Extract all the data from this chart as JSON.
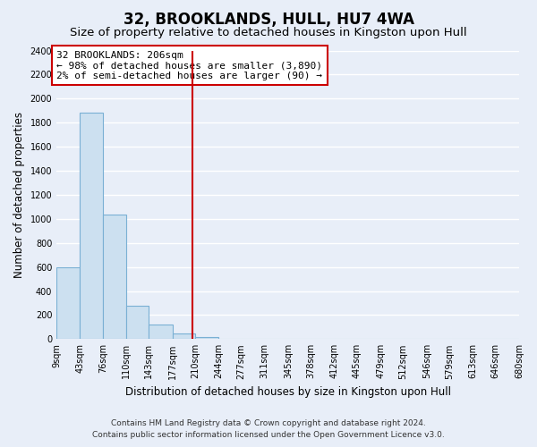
{
  "title": "32, BROOKLANDS, HULL, HU7 4WA",
  "subtitle": "Size of property relative to detached houses in Kingston upon Hull",
  "xlabel": "Distribution of detached houses by size in Kingston upon Hull",
  "ylabel": "Number of detached properties",
  "bin_edges": [
    9,
    43,
    76,
    110,
    143,
    177,
    210,
    244,
    277,
    311,
    345,
    378,
    412,
    445,
    479,
    512,
    546,
    579,
    613,
    646,
    680
  ],
  "bar_heights": [
    600,
    1880,
    1035,
    280,
    120,
    45,
    20,
    0,
    0,
    0,
    0,
    0,
    0,
    0,
    0,
    0,
    0,
    0,
    0,
    0
  ],
  "bar_color": "#cce0f0",
  "bar_edgecolor": "#7ab0d4",
  "property_line_x": 206,
  "property_line_color": "#cc0000",
  "annotation_line1": "32 BROOKLANDS: 206sqm",
  "annotation_line2": "← 98% of detached houses are smaller (3,890)",
  "annotation_line3": "2% of semi-detached houses are larger (90) →",
  "annotation_box_edgecolor": "#cc0000",
  "annotation_box_facecolor": "#ffffff",
  "ylim": [
    0,
    2400
  ],
  "yticks": [
    0,
    200,
    400,
    600,
    800,
    1000,
    1200,
    1400,
    1600,
    1800,
    2000,
    2200,
    2400
  ],
  "xtick_labels": [
    "9sqm",
    "43sqm",
    "76sqm",
    "110sqm",
    "143sqm",
    "177sqm",
    "210sqm",
    "244sqm",
    "277sqm",
    "311sqm",
    "345sqm",
    "378sqm",
    "412sqm",
    "445sqm",
    "479sqm",
    "512sqm",
    "546sqm",
    "579sqm",
    "613sqm",
    "646sqm",
    "680sqm"
  ],
  "footer_line1": "Contains HM Land Registry data © Crown copyright and database right 2024.",
  "footer_line2": "Contains public sector information licensed under the Open Government Licence v3.0.",
  "bg_color": "#e8eef8",
  "plot_bg_color": "#e8eef8",
  "grid_color": "#ffffff",
  "title_fontsize": 12,
  "subtitle_fontsize": 9.5,
  "axis_label_fontsize": 8.5,
  "tick_fontsize": 7,
  "annotation_fontsize": 8,
  "footer_fontsize": 6.5
}
